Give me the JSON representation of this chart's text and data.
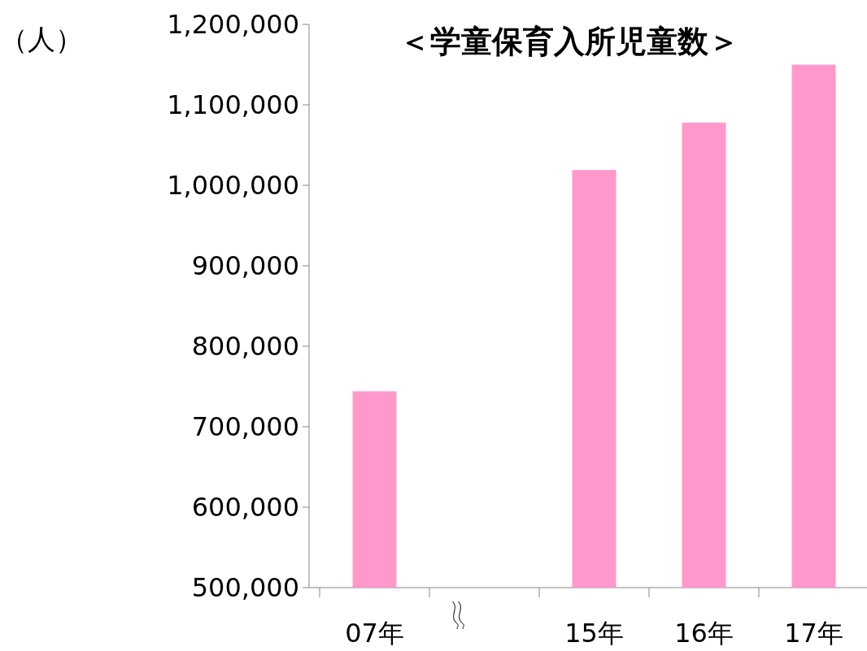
{
  "chart_data": {
    "type": "bar",
    "title": "＜学童保育入所児童数＞",
    "ylabel": "（人）",
    "categories": [
      "07年",
      null,
      "15年",
      "16年",
      "17年"
    ],
    "values": [
      744000,
      null,
      1019000,
      1078000,
      1150000
    ],
    "color": "#ff99cc",
    "ylim": [
      500000,
      1200000
    ],
    "yticks": [
      {
        "value": 500000,
        "label": "500,000"
      },
      {
        "value": 600000,
        "label": "600,000"
      },
      {
        "value": 700000,
        "label": "700,000"
      },
      {
        "value": 800000,
        "label": "800,000"
      },
      {
        "value": 900000,
        "label": "900,000"
      },
      {
        "value": 1000000,
        "label": "1,000,000"
      },
      {
        "value": 1100000,
        "label": "1,100,000"
      },
      {
        "value": 1200000,
        "label": "1,200,000"
      }
    ],
    "grid": false
  }
}
